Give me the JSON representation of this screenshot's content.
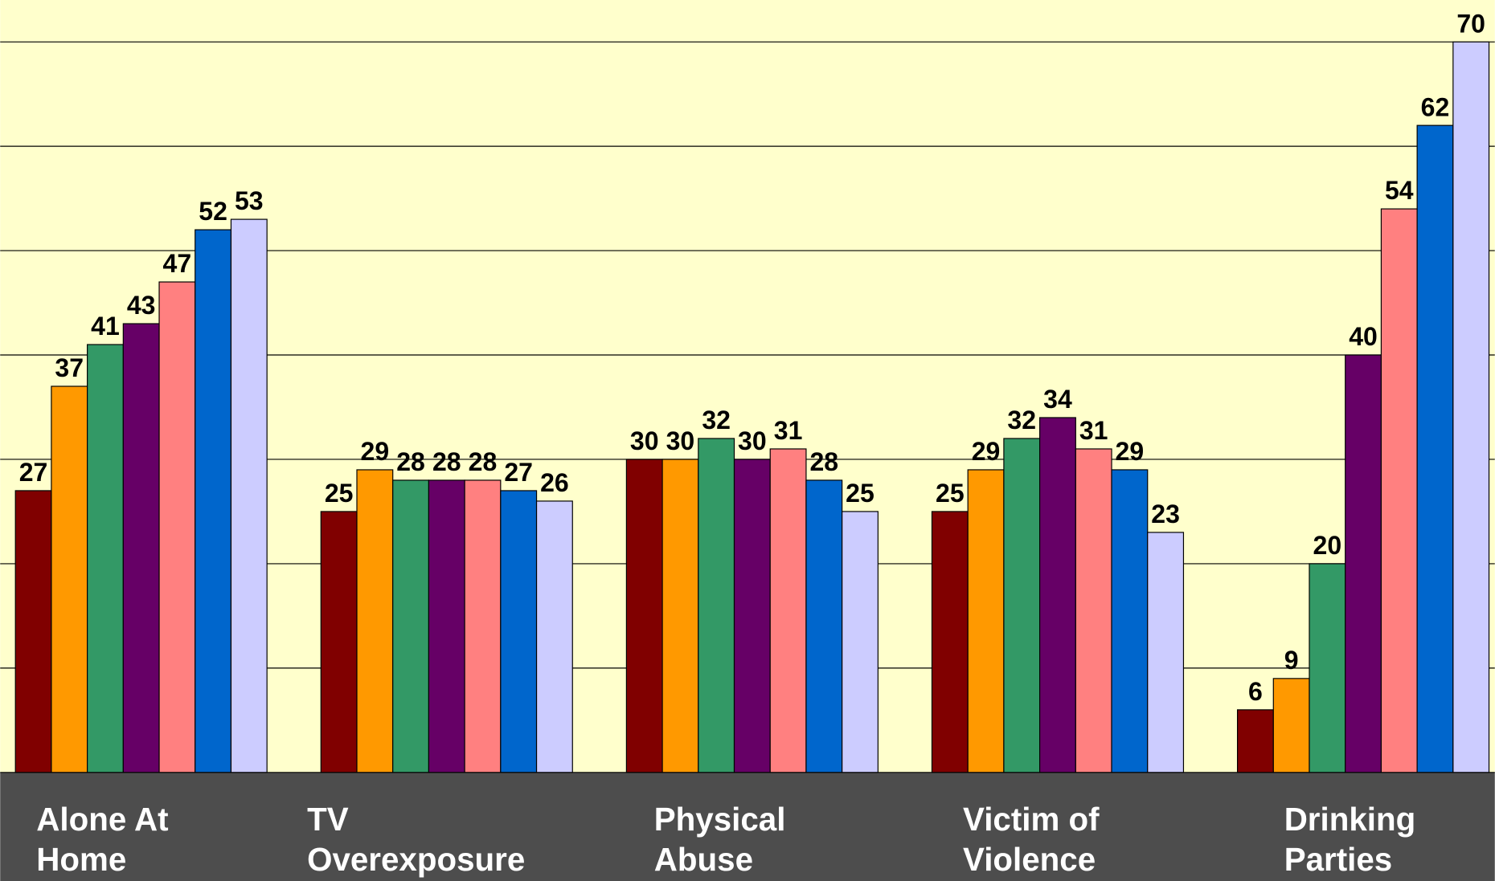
{
  "chart_data": {
    "type": "bar",
    "categories": [
      "Alone At Home",
      "TV Overexposure",
      "Physical Abuse",
      "Victim of Violence",
      "Drinking Parties"
    ],
    "series": [
      {
        "color": "#800000",
        "values": [
          27,
          25,
          30,
          25,
          6
        ]
      },
      {
        "color": "#ff9900",
        "values": [
          37,
          29,
          30,
          29,
          9
        ]
      },
      {
        "color": "#339966",
        "values": [
          41,
          28,
          32,
          32,
          20
        ]
      },
      {
        "color": "#660066",
        "values": [
          43,
          28,
          30,
          34,
          40
        ]
      },
      {
        "color": "#ff8080",
        "values": [
          47,
          28,
          31,
          31,
          54
        ]
      },
      {
        "color": "#0066cc",
        "values": [
          52,
          27,
          28,
          29,
          62
        ]
      },
      {
        "color": "#ccccff",
        "values": [
          53,
          26,
          25,
          23,
          70
        ]
      }
    ],
    "ylim": [
      0,
      70
    ],
    "yticks": [
      0,
      10,
      20,
      30,
      40,
      50,
      60,
      70
    ],
    "grid": true
  }
}
